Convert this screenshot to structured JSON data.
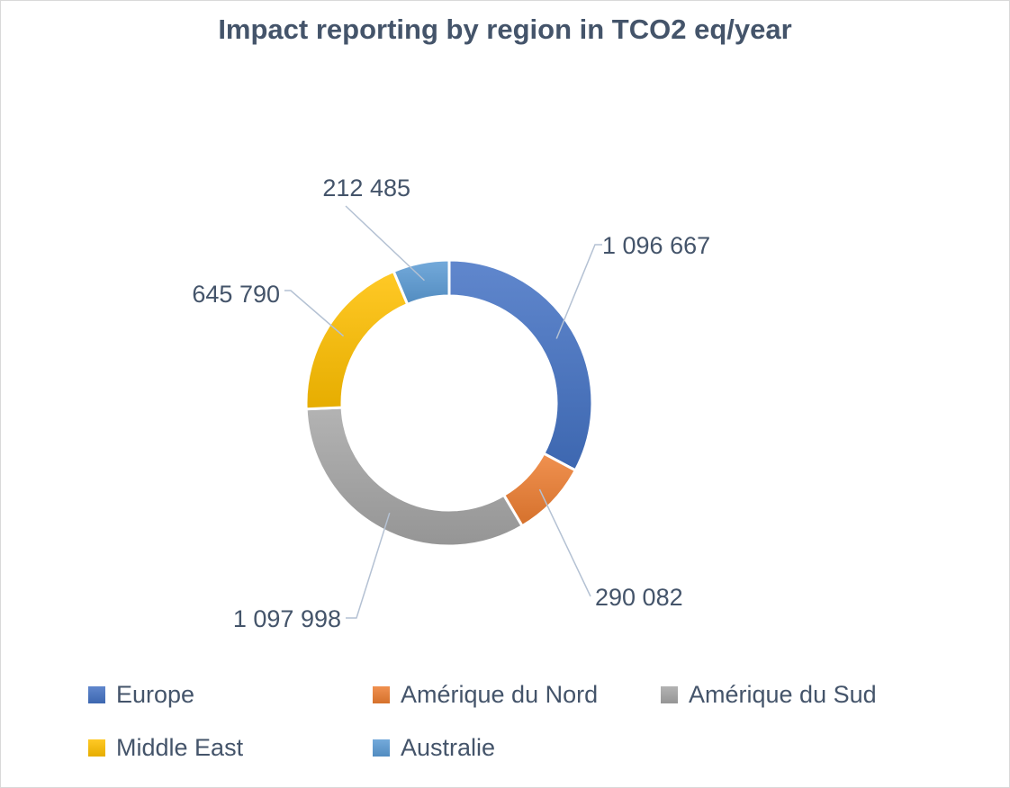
{
  "chart_data": {
    "type": "pie",
    "variant": "donut",
    "title": "Impact reporting by region in TCO2 eq/year",
    "categories": [
      "Europe",
      "Amérique du Nord",
      "Amérique du Sud",
      "Middle East",
      "Australie"
    ],
    "values": [
      1096667,
      290082,
      1097998,
      645790,
      212485
    ],
    "data_labels": [
      "1 096 667",
      "290 082",
      "1 097 998",
      "645 790",
      "212 485"
    ],
    "colors": [
      "#4472C4",
      "#ED7D31",
      "#A5A5A5",
      "#FFC000",
      "#5B9BD5"
    ],
    "legend_position": "bottom"
  }
}
